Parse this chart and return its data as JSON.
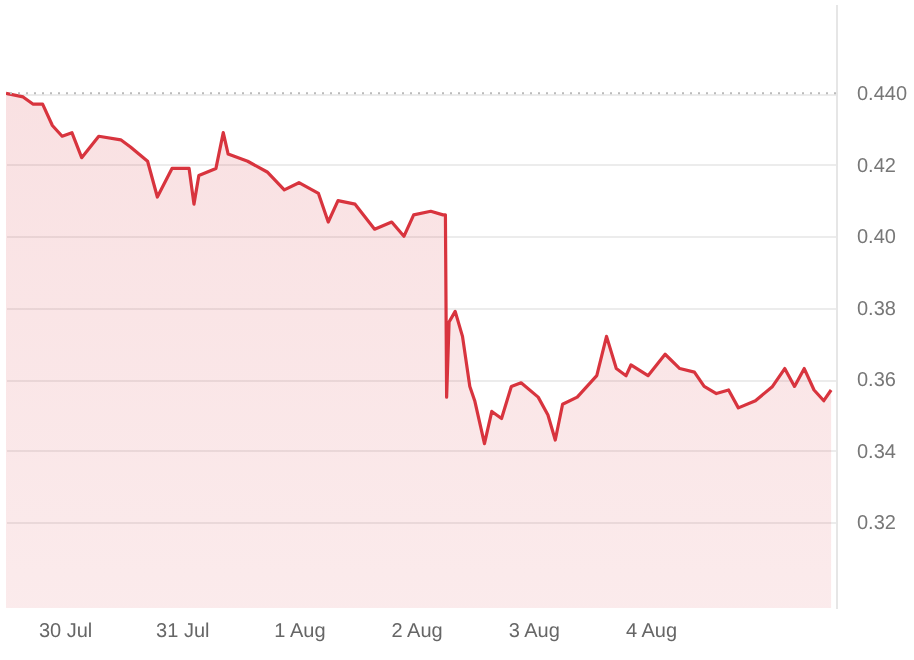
{
  "chart_data": {
    "type": "area",
    "x": [
      "--07-29T12:00",
      "--07-29T15:30",
      "--07-29T17:30",
      "--07-29T19:30",
      "--07-29T21:30",
      "--07-29T23:30",
      "--07-30T01:30",
      "--07-30T03:30",
      "--07-30T07:00",
      "--07-30T11:30",
      "--07-30T13:30",
      "--07-30T17:00",
      "--07-30T19:00",
      "--07-30T22:00",
      "--07-31T01:30",
      "--07-31T02:30",
      "--07-31T03:30",
      "--07-31T07:00",
      "--07-31T08:30",
      "--07-31T09:30",
      "--07-31T13:30",
      "--07-31T17:30",
      "--07-31T21:00",
      "--08-01T00:00",
      "--08-01T04:00",
      "--08-01T06:00",
      "--08-01T08:00",
      "--08-01T11:30",
      "--08-01T15:30",
      "--08-01T19:00",
      "--08-01T21:30",
      "--08-01T23:30",
      "--08-02T03:00",
      "--08-02T05:30",
      "--08-02T06:00",
      "--08-02T06:15",
      "--08-02T06:45",
      "--08-02T08:00",
      "--08-02T09:30",
      "--08-02T11:00",
      "--08-02T12:00",
      "--08-02T14:00",
      "--08-02T15:30",
      "--08-02T17:30",
      "--08-02T19:30",
      "--08-02T21:30",
      "--08-03T01:00",
      "--08-03T03:00",
      "--08-03T04:30",
      "--08-03T06:00",
      "--08-03T09:00",
      "--08-03T11:00",
      "--08-03T13:00",
      "--08-03T15:00",
      "--08-03T17:00",
      "--08-03T19:00",
      "--08-03T20:00",
      "--08-03T23:30",
      "--08-04T03:00",
      "--08-04T06:00",
      "--08-04T09:00",
      "--08-04T11:00",
      "--08-04T13:30",
      "--08-04T16:00",
      "--08-04T18:00",
      "--08-04T21:30",
      "--08-05T01:00",
      "--08-05T03:30",
      "--08-05T05:30",
      "--08-05T07:30",
      "--08-05T09:30",
      "--08-05T11:30",
      "--08-05T13:00"
    ],
    "series": [
      {
        "color": "#d8343e",
        "values": [
          0.44,
          0.439,
          0.437,
          0.437,
          0.431,
          0.428,
          0.429,
          0.422,
          0.428,
          0.427,
          0.425,
          0.421,
          0.411,
          0.419,
          0.419,
          0.409,
          0.417,
          0.419,
          0.429,
          0.423,
          0.421,
          0.418,
          0.413,
          0.415,
          0.412,
          0.404,
          0.41,
          0.409,
          0.402,
          0.404,
          0.4,
          0.406,
          0.407,
          0.406,
          0.406,
          0.355,
          0.376,
          0.379,
          0.372,
          0.358,
          0.354,
          0.342,
          0.351,
          0.349,
          0.358,
          0.359,
          0.355,
          0.35,
          0.343,
          0.353,
          0.355,
          0.358,
          0.361,
          0.372,
          0.363,
          0.361,
          0.364,
          0.361,
          0.367,
          0.363,
          0.362,
          0.358,
          0.356,
          0.357,
          0.352,
          0.354,
          0.358,
          0.363,
          0.358,
          0.363,
          0.357,
          0.354,
          0.357
        ]
      }
    ],
    "xlim": [
      "--07-29T12:00",
      "--08-05T14:00"
    ],
    "xticks": [
      {
        "value": "--07-30",
        "label": "30 Jul"
      },
      {
        "value": "--07-31",
        "label": "31 Jul"
      },
      {
        "value": "--08-01",
        "label": "1 Aug"
      },
      {
        "value": "--08-02",
        "label": "2 Aug"
      },
      {
        "value": "--08-03",
        "label": "3 Aug"
      },
      {
        "value": "--08-04",
        "label": "4 Aug"
      }
    ],
    "ylim": [
      0.296,
      0.465
    ],
    "yticks": [
      0.32,
      0.34,
      0.36,
      0.38,
      {
        "value": 0.4,
        "label": "0.40"
      },
      0.42,
      {
        "value": 0.44,
        "label": "0.440"
      }
    ],
    "grid": "y",
    "ref_lines": [
      {
        "axis": "y",
        "value": 0.44,
        "color": "#bbbbbb",
        "line_style": "dotted"
      }
    ]
  }
}
